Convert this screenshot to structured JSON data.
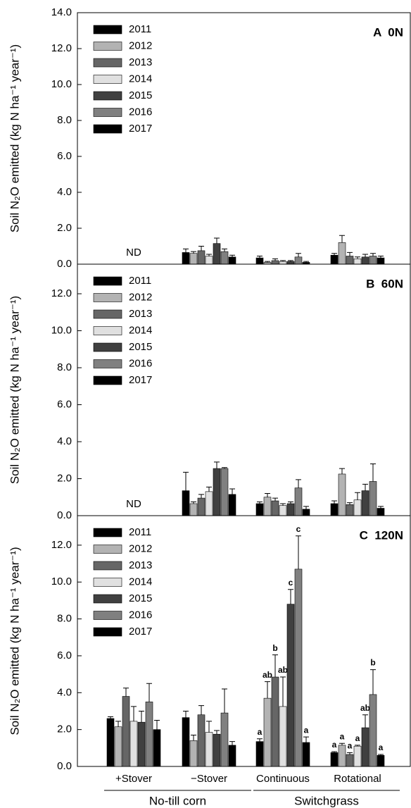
{
  "x_axis": {
    "categories": [
      "+Stover",
      "−Stover",
      "Continuous",
      "Rotational"
    ],
    "groups": [
      {
        "name": "No-till corn",
        "categories": [
          "+Stover",
          "−Stover"
        ]
      },
      {
        "name": "Switchgrass",
        "categories": [
          "Continuous",
          "Rotational"
        ]
      }
    ]
  },
  "chart_data": [
    {
      "type": "bar",
      "title": "A  0N",
      "ylabel": "Soil N₂O emitted (kg N ha⁻¹ year⁻¹)",
      "annotation": "ND",
      "ylim": [
        0,
        14
      ],
      "yticks": [
        {
          "value": 0,
          "label": "0.0"
        },
        {
          "value": 2,
          "label": "2.0"
        },
        {
          "value": 4,
          "label": "4.0"
        },
        {
          "value": 6,
          "label": "6.0"
        },
        {
          "value": 8,
          "label": "8.0"
        },
        {
          "value": 10,
          "label": "10.0"
        },
        {
          "value": 12,
          "label": "12.0"
        },
        {
          "value": 14,
          "label": "14.0"
        }
      ],
      "series": [
        {
          "name": "2011",
          "color": "#000000",
          "values": [
            null,
            0.65,
            0.35,
            0.5
          ],
          "errors": [
            null,
            0.2,
            0.1,
            0.1
          ]
        },
        {
          "name": "2012",
          "color": "#b3b3b3",
          "values": [
            null,
            0.6,
            0.1,
            1.2
          ],
          "errors": [
            null,
            0.1,
            0.05,
            0.4
          ]
        },
        {
          "name": "2013",
          "color": "#666666",
          "values": [
            null,
            0.75,
            0.2,
            0.45
          ],
          "errors": [
            null,
            0.25,
            0.1,
            0.2
          ]
        },
        {
          "name": "2014",
          "color": "#e0e0e0",
          "values": [
            null,
            0.45,
            0.15,
            0.3
          ],
          "errors": [
            null,
            0.1,
            0.05,
            0.1
          ]
        },
        {
          "name": "2015",
          "color": "#404040",
          "values": [
            null,
            1.15,
            0.15,
            0.4
          ],
          "errors": [
            null,
            0.3,
            0.05,
            0.15
          ]
        },
        {
          "name": "2016",
          "color": "#808080",
          "values": [
            null,
            0.7,
            0.4,
            0.45
          ],
          "errors": [
            null,
            0.15,
            0.2,
            0.15
          ]
        },
        {
          "name": "2017",
          "color": "#000000",
          "values": [
            null,
            0.4,
            0.1,
            0.35
          ],
          "errors": [
            null,
            0.1,
            0.05,
            0.1
          ]
        }
      ]
    },
    {
      "type": "bar",
      "title": "B  60N",
      "ylabel": "Soil N₂O emitted (kg N ha⁻¹ year⁻¹)",
      "annotation": "ND",
      "ylim": [
        0,
        13.6
      ],
      "yticks": [
        {
          "value": 0,
          "label": "0.0"
        },
        {
          "value": 2,
          "label": "2.0"
        },
        {
          "value": 4,
          "label": "4.0"
        },
        {
          "value": 6,
          "label": "6.0"
        },
        {
          "value": 8,
          "label": "8.0"
        },
        {
          "value": 10,
          "label": "10.0"
        },
        {
          "value": 12,
          "label": "12.0"
        }
      ],
      "series": [
        {
          "name": "2011",
          "color": "#000000",
          "values": [
            null,
            1.35,
            0.65,
            0.65
          ],
          "errors": [
            null,
            1.0,
            0.1,
            0.15
          ]
        },
        {
          "name": "2012",
          "color": "#b3b3b3",
          "values": [
            null,
            0.65,
            1.0,
            2.25
          ],
          "errors": [
            null,
            0.1,
            0.2,
            0.3
          ]
        },
        {
          "name": "2013",
          "color": "#666666",
          "values": [
            null,
            0.95,
            0.8,
            0.6
          ],
          "errors": [
            null,
            0.2,
            0.15,
            0.1
          ]
        },
        {
          "name": "2014",
          "color": "#e0e0e0",
          "values": [
            null,
            1.3,
            0.55,
            0.85
          ],
          "errors": [
            null,
            0.25,
            0.1,
            0.4
          ]
        },
        {
          "name": "2015",
          "color": "#404040",
          "values": [
            null,
            2.55,
            0.65,
            1.35
          ],
          "errors": [
            null,
            0.35,
            0.1,
            0.35
          ]
        },
        {
          "name": "2016",
          "color": "#808080",
          "values": [
            null,
            2.55,
            1.5,
            1.85
          ],
          "errors": [
            null,
            0.05,
            0.45,
            0.95
          ]
        },
        {
          "name": "2017",
          "color": "#000000",
          "values": [
            null,
            1.15,
            0.35,
            0.4
          ],
          "errors": [
            null,
            0.3,
            0.15,
            0.1
          ]
        }
      ]
    },
    {
      "type": "bar",
      "title": "C  120N",
      "ylabel": "Soil N₂O emitted (kg N ha⁻¹ year⁻¹)",
      "ylim": [
        0,
        13.6
      ],
      "yticks": [
        {
          "value": 0,
          "label": "0.0"
        },
        {
          "value": 2,
          "label": "2.0"
        },
        {
          "value": 4,
          "label": "4.0"
        },
        {
          "value": 6,
          "label": "6.0"
        },
        {
          "value": 8,
          "label": "8.0"
        },
        {
          "value": 10,
          "label": "10.0"
        },
        {
          "value": 12,
          "label": "12.0"
        }
      ],
      "series": [
        {
          "name": "2011",
          "color": "#000000",
          "values": [
            2.6,
            2.65,
            1.35,
            0.75
          ],
          "errors": [
            0.1,
            0.35,
            0.15,
            0.05
          ],
          "letters": [
            null,
            null,
            "a",
            "a"
          ]
        },
        {
          "name": "2012",
          "color": "#b3b3b3",
          "values": [
            2.15,
            1.4,
            3.7,
            1.15
          ],
          "errors": [
            0.3,
            0.3,
            0.9,
            0.1
          ],
          "letters": [
            null,
            null,
            "ab",
            "a"
          ]
        },
        {
          "name": "2013",
          "color": "#666666",
          "values": [
            3.8,
            2.8,
            4.85,
            0.65
          ],
          "errors": [
            0.45,
            0.5,
            1.2,
            0.1
          ],
          "letters": [
            null,
            null,
            "b",
            "a"
          ]
        },
        {
          "name": "2014",
          "color": "#e0e0e0",
          "values": [
            2.45,
            1.85,
            3.25,
            1.1
          ],
          "errors": [
            0.8,
            0.6,
            1.6,
            0.05
          ],
          "letters": [
            null,
            null,
            "ab",
            "a"
          ]
        },
        {
          "name": "2015",
          "color": "#404040",
          "values": [
            2.4,
            1.75,
            8.8,
            2.1
          ],
          "errors": [
            0.6,
            0.2,
            0.8,
            0.7
          ],
          "letters": [
            null,
            null,
            "c",
            "ab"
          ]
        },
        {
          "name": "2016",
          "color": "#808080",
          "values": [
            3.5,
            2.9,
            10.7,
            3.9
          ],
          "errors": [
            1.0,
            1.3,
            1.8,
            1.35
          ],
          "letters": [
            null,
            null,
            "c",
            "b"
          ]
        },
        {
          "name": "2017",
          "color": "#000000",
          "values": [
            2.0,
            1.15,
            1.3,
            0.6
          ],
          "errors": [
            0.5,
            0.2,
            0.3,
            0.05
          ],
          "letters": [
            null,
            null,
            "a",
            "a"
          ]
        }
      ]
    }
  ]
}
